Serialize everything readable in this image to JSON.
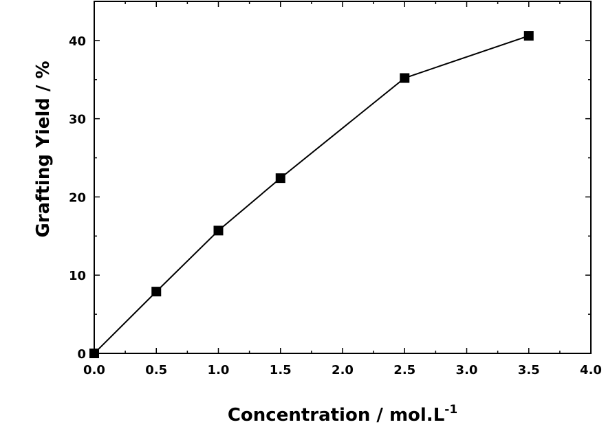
{
  "chart_data": {
    "type": "line",
    "xlabel": "Concentration / mol.L",
    "xlabel_superscript": "-1",
    "ylabel": "Grafting Yield / %",
    "xlim": [
      0.0,
      4.0
    ],
    "ylim": [
      0,
      45
    ],
    "x_ticks": [
      0.0,
      0.5,
      1.0,
      1.5,
      2.0,
      2.5,
      3.0,
      3.5,
      4.0
    ],
    "x_tick_labels": [
      "0.0",
      "0.5",
      "1.0",
      "1.5",
      "2.0",
      "2.5",
      "3.0",
      "3.5",
      "4.0"
    ],
    "y_ticks": [
      0,
      10,
      20,
      30,
      40
    ],
    "y_tick_labels": [
      "0",
      "10",
      "20",
      "30",
      "40"
    ],
    "grid": false,
    "legend": "none",
    "series": [
      {
        "marker": "square",
        "color": "#000000",
        "x": [
          0.0,
          0.5,
          1.0,
          1.5,
          2.5,
          3.5
        ],
        "y": [
          0.0,
          7.9,
          15.7,
          22.4,
          35.2,
          40.6
        ]
      }
    ]
  }
}
